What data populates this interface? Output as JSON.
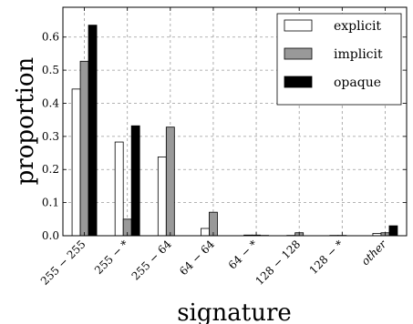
{
  "chart_data": {
    "type": "bar",
    "title": "",
    "xlabel": "signature",
    "ylabel": "proportion",
    "ylim": [
      0,
      0.69
    ],
    "yticks": [
      "0.0",
      "0.1",
      "0.2",
      "0.3",
      "0.4",
      "0.5",
      "0.6"
    ],
    "grid": true,
    "legend_position": "top-right",
    "categories": [
      "255 − 255",
      "255 − *",
      "255 − 64",
      "64 − 64",
      "64 − *",
      "128 − 128",
      "128 − *",
      "other"
    ],
    "series": [
      {
        "name": "explicit",
        "color": "#ffffff",
        "values": [
          0.443,
          0.283,
          0.238,
          0.022,
          0.002,
          0.001,
          0.001,
          0.007
        ]
      },
      {
        "name": "implicit",
        "color": "#999999",
        "values": [
          0.527,
          0.05,
          0.328,
          0.071,
          0.002,
          0.009,
          0.001,
          0.009
        ]
      },
      {
        "name": "opaque",
        "color": "#000000",
        "values": [
          0.636,
          0.332,
          0.0,
          0.0,
          0.001,
          0.0,
          0.0,
          0.03
        ]
      }
    ]
  }
}
